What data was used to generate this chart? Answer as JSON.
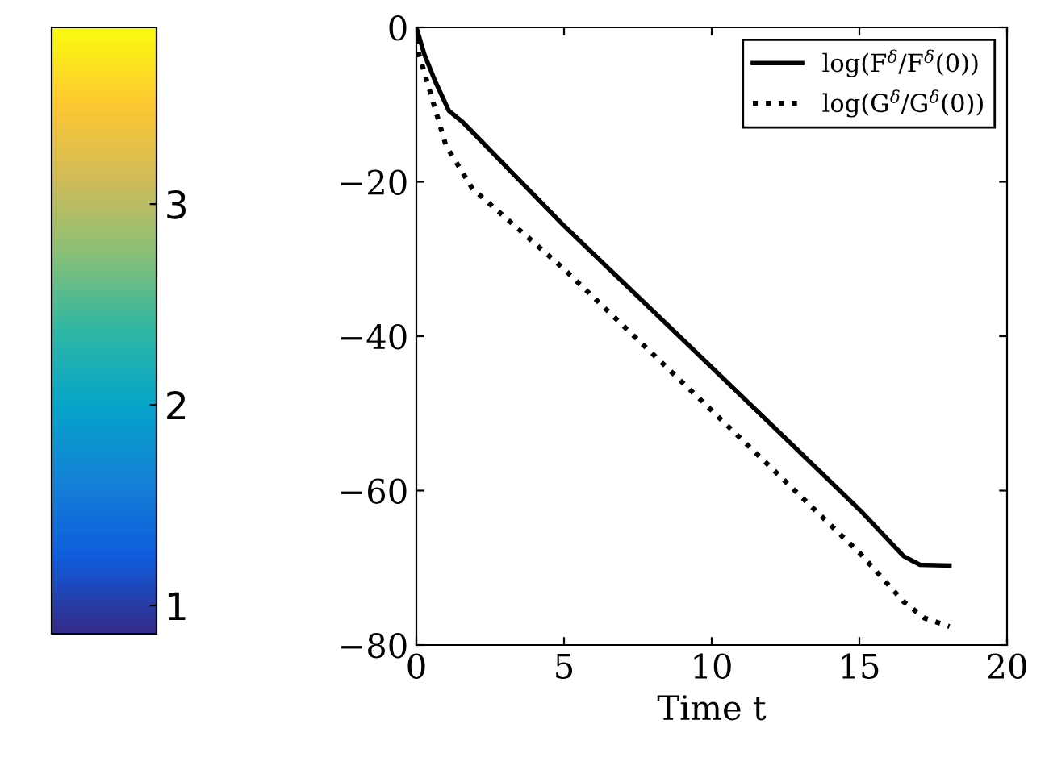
{
  "chart_data": {
    "type": "line",
    "xlabel": "Time t",
    "xlim": [
      0,
      20
    ],
    "ylim": [
      -80,
      0
    ],
    "xticks": [
      0,
      5,
      10,
      15,
      20
    ],
    "yticks": [
      0,
      -20,
      -40,
      -60,
      -80
    ],
    "grid": false,
    "legend": "top right",
    "clim": [
      0.86,
      3.88
    ],
    "cticks": [
      1,
      2,
      3
    ],
    "series": [
      {
        "name": "log(F$^{δ}$/F$^{δ}$(0))",
        "color": "#000000",
        "line_style": "solid",
        "x": [
          0,
          0.27,
          0.64,
          1.1,
          1.55,
          5.0,
          9.94,
          15.04,
          16.5,
          17.05,
          18.05
        ],
        "values": [
          0,
          -3.5,
          -7,
          -10.8,
          -12.2,
          -25.7,
          -43.8,
          -62.6,
          -68.5,
          -69.6,
          -69.7
        ]
      },
      {
        "name": "log(G$^{δ}$/G$^{δ}$(0))",
        "color": "#000000",
        "line_style": "dotted",
        "x": [
          0,
          0.09,
          0.46,
          1.0,
          1.9,
          5.0,
          9.94,
          15.04,
          16.5,
          17.2,
          18.05
        ],
        "values": [
          -1.5,
          -3.5,
          -8.3,
          -15.3,
          -20.9,
          -31.3,
          -49.4,
          -68.2,
          -74.4,
          -76.5,
          -77.6
        ]
      }
    ]
  }
}
